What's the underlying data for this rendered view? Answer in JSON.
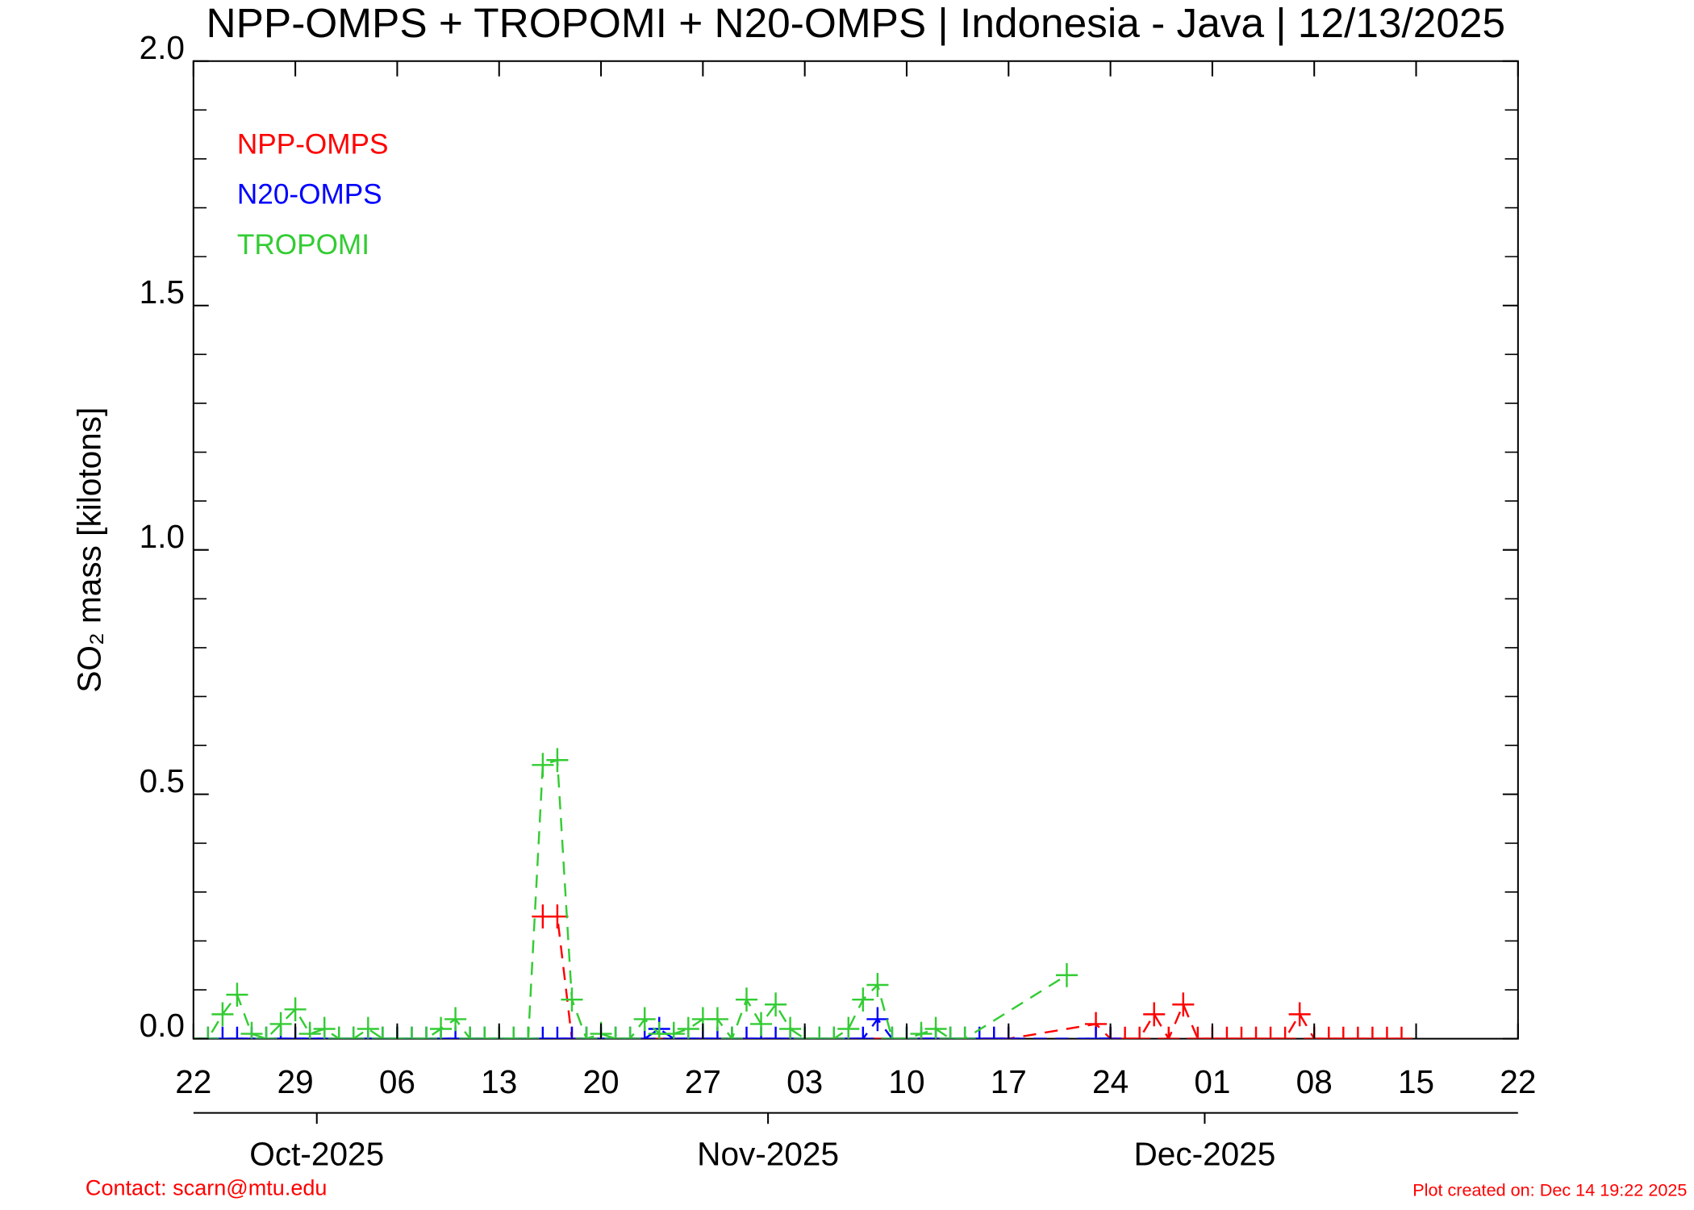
{
  "chart_data": {
    "type": "line",
    "title": "NPP-OMPS + TROPOMI + N20-OMPS | Indonesia - Java | 12/13/2025",
    "y_label": "SO₂ mass [kilotons]",
    "legend_position": "upper left",
    "contact": "Contact: scarn@mtu.edu",
    "created": "Plot created on: Dec 14 19:22 2025",
    "ylim": [
      0,
      2
    ],
    "yticks": [
      {
        "value": 0,
        "label": "0.0"
      },
      {
        "value": 0.5,
        "label": "0.5"
      },
      {
        "value": 1,
        "label": "1.0"
      },
      {
        "value": 1.5,
        "label": "1.5"
      },
      {
        "value": 2,
        "label": "2.0"
      }
    ],
    "yminorticks": [
      0.1,
      0.2,
      0.3,
      0.4,
      0.6,
      0.7,
      0.8,
      0.9,
      1.1,
      1.2,
      1.3,
      1.4,
      1.6,
      1.7,
      1.8,
      1.9
    ],
    "xlim": [
      "2025-09-22",
      "2025-12-22"
    ],
    "xticks": [
      {
        "value": "2025-09-22",
        "label": "22"
      },
      {
        "value": "2025-09-29",
        "label": "29"
      },
      {
        "value": "2025-10-06",
        "label": "06"
      },
      {
        "value": "2025-10-13",
        "label": "13"
      },
      {
        "value": "2025-10-20",
        "label": "20"
      },
      {
        "value": "2025-10-27",
        "label": "27"
      },
      {
        "value": "2025-11-03",
        "label": "03"
      },
      {
        "value": "2025-11-10",
        "label": "10"
      },
      {
        "value": "2025-11-17",
        "label": "17"
      },
      {
        "value": "2025-11-24",
        "label": "24"
      },
      {
        "value": "2025-12-01",
        "label": "01"
      },
      {
        "value": "2025-12-08",
        "label": "08"
      },
      {
        "value": "2025-12-15",
        "label": "15"
      },
      {
        "value": "2025-12-22",
        "label": "22"
      }
    ],
    "xmonthticks": [
      {
        "value": "2025-10-01",
        "label": "Oct-2025"
      },
      {
        "value": "2025-11-01",
        "label": "Nov-2025"
      },
      {
        "value": "2025-12-01",
        "label": "Dec-2025"
      }
    ],
    "series": [
      {
        "name": "NPP-OMPS",
        "color": "#ff0000",
        "x": [
          "2025-10-16",
          "2025-10-17",
          "2025-10-18",
          "2025-11-16",
          "2025-11-17",
          "2025-11-23",
          "2025-11-24",
          "2025-11-25",
          "2025-11-26",
          "2025-11-27",
          "2025-11-28",
          "2025-11-29",
          "2025-11-30",
          "2025-12-01",
          "2025-12-02",
          "2025-12-03",
          "2025-12-04",
          "2025-12-05",
          "2025-12-06",
          "2025-12-07",
          "2025-12-08",
          "2025-12-09",
          "2025-12-10",
          "2025-12-11",
          "2025-12-12",
          "2025-12-13",
          "2025-12-14"
        ],
        "values": [
          0.25,
          0.25,
          0,
          0,
          0,
          0.03,
          0,
          0,
          0,
          0.05,
          0,
          0.07,
          0,
          0,
          0,
          0,
          0,
          0,
          0,
          0.05,
          0,
          0,
          0,
          0,
          0,
          0,
          0
        ]
      },
      {
        "name": "N20-OMPS",
        "color": "#0000ff",
        "x": [
          "2025-09-23",
          "2025-09-24",
          "2025-09-25",
          "2025-09-26",
          "2025-09-27",
          "2025-09-28",
          "2025-09-29",
          "2025-09-30",
          "2025-10-01",
          "2025-10-02",
          "2025-10-03",
          "2025-10-04",
          "2025-10-05",
          "2025-10-06",
          "2025-10-07",
          "2025-10-08",
          "2025-10-09",
          "2025-10-10",
          "2025-10-11",
          "2025-10-12",
          "2025-10-13",
          "2025-10-14",
          "2025-10-15",
          "2025-10-16",
          "2025-10-17",
          "2025-10-18",
          "2025-10-19",
          "2025-10-20",
          "2025-10-21",
          "2025-10-22",
          "2025-10-23",
          "2025-10-24",
          "2025-10-25",
          "2025-10-26",
          "2025-10-27",
          "2025-10-28",
          "2025-10-29",
          "2025-10-30",
          "2025-10-31",
          "2025-11-01",
          "2025-11-02",
          "2025-11-03",
          "2025-11-04",
          "2025-11-05",
          "2025-11-06",
          "2025-11-07",
          "2025-11-08",
          "2025-11-09",
          "2025-11-10",
          "2025-11-11",
          "2025-11-12",
          "2025-11-13",
          "2025-11-14",
          "2025-11-15",
          "2025-11-16",
          "2025-11-17",
          "2025-11-23",
          "2025-11-24"
        ],
        "values": [
          0,
          0,
          0,
          0,
          0,
          0,
          0,
          0,
          0,
          0,
          0,
          0,
          0,
          0,
          0,
          0,
          0,
          0,
          0,
          0,
          0,
          0,
          0,
          0,
          0,
          0,
          0,
          0,
          0,
          0,
          0,
          0.02,
          0,
          0,
          0,
          0,
          0,
          0,
          0,
          0,
          0,
          0,
          0,
          0,
          0,
          0,
          0.04,
          0,
          0,
          0,
          0,
          0,
          0,
          0,
          0,
          0,
          0,
          0
        ]
      },
      {
        "name": "TROPOMI",
        "color": "#33cc33",
        "x": [
          "2025-09-22",
          "2025-09-23",
          "2025-09-24",
          "2025-09-25",
          "2025-09-26",
          "2025-09-27",
          "2025-09-28",
          "2025-09-29",
          "2025-09-30",
          "2025-10-01",
          "2025-10-02",
          "2025-10-03",
          "2025-10-04",
          "2025-10-05",
          "2025-10-06",
          "2025-10-07",
          "2025-10-08",
          "2025-10-09",
          "2025-10-10",
          "2025-10-11",
          "2025-10-12",
          "2025-10-13",
          "2025-10-14",
          "2025-10-15",
          "2025-10-16",
          "2025-10-17",
          "2025-10-18",
          "2025-10-19",
          "2025-10-20",
          "2025-10-21",
          "2025-10-22",
          "2025-10-23",
          "2025-10-24",
          "2025-10-25",
          "2025-10-26",
          "2025-10-27",
          "2025-10-28",
          "2025-10-29",
          "2025-10-30",
          "2025-10-31",
          "2025-11-01",
          "2025-11-02",
          "2025-11-03",
          "2025-11-04",
          "2025-11-05",
          "2025-11-06",
          "2025-11-07",
          "2025-11-08",
          "2025-11-09",
          "2025-11-10",
          "2025-11-11",
          "2025-11-12",
          "2025-11-13",
          "2025-11-14",
          "2025-11-21"
        ],
        "values": [
          0,
          0,
          0.05,
          0.09,
          0.01,
          0,
          0.03,
          0.06,
          0.01,
          0.02,
          0,
          0,
          0.02,
          0,
          0,
          0,
          0,
          0.02,
          0.04,
          0,
          0,
          0,
          0,
          0,
          0.56,
          0.57,
          0.08,
          0,
          0.01,
          0,
          0,
          0.04,
          0.01,
          0.01,
          0.02,
          0.04,
          0.04,
          0,
          0.08,
          0.03,
          0.07,
          0.02,
          0,
          0,
          0,
          0.02,
          0.08,
          0.11,
          0,
          0,
          0.01,
          0.02,
          0,
          0,
          0.13
        ]
      }
    ]
  }
}
